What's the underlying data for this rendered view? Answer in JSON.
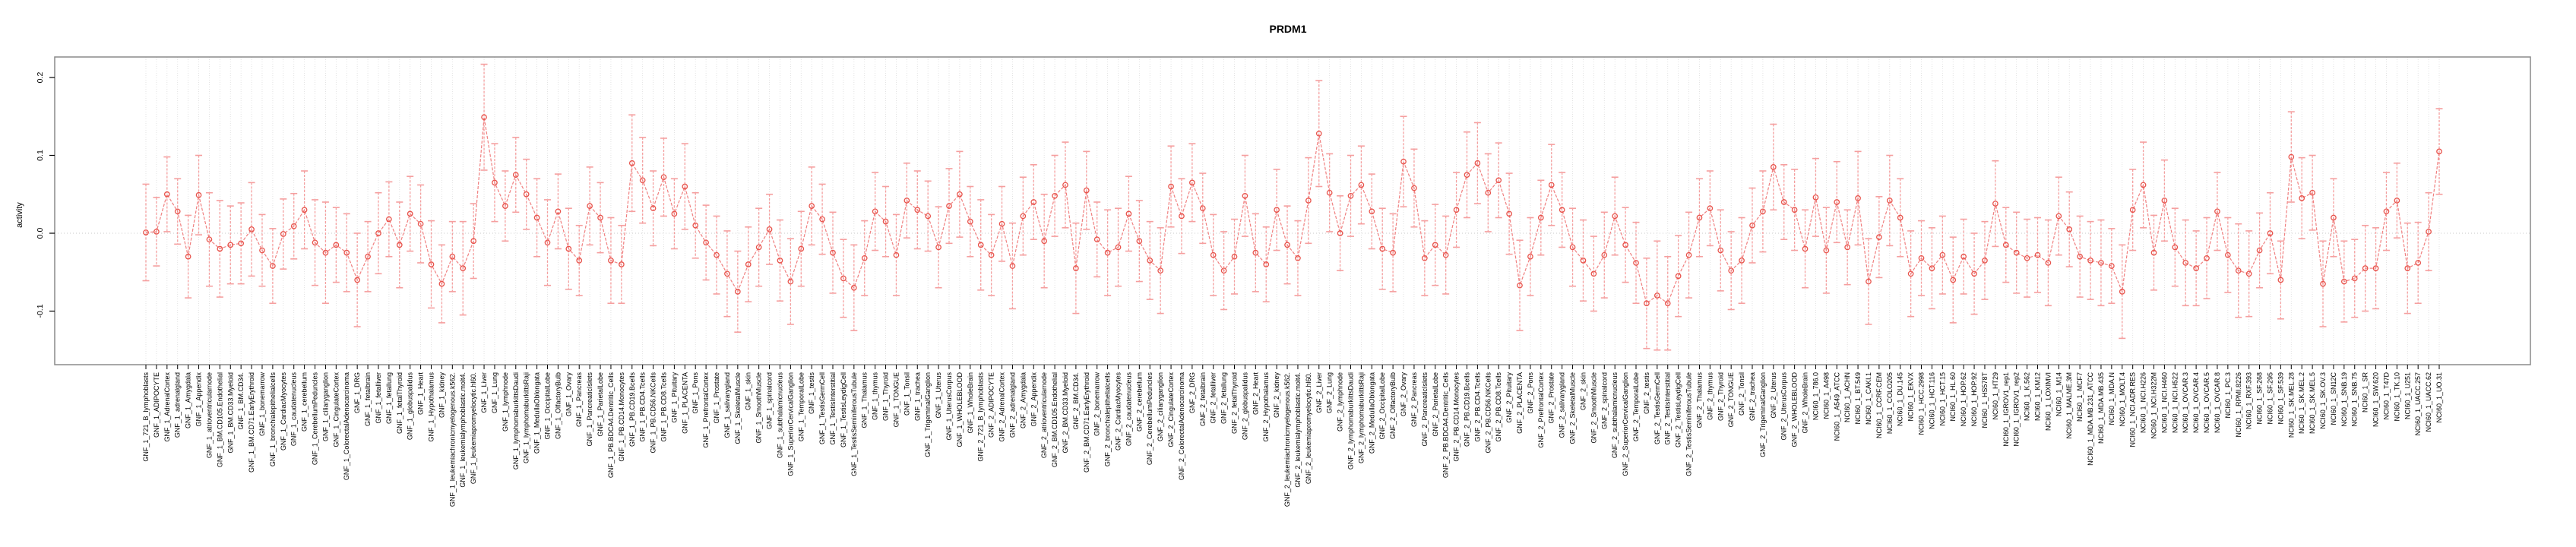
{
  "title": "PRDM1",
  "chart_data": {
    "type": "line",
    "title": "PRDM1",
    "xlabel": "",
    "ylabel": "activity",
    "ylim": [
      -0.169,
      0.226
    ],
    "yticks": [
      -0.1,
      0.0,
      0.1,
      0.2
    ],
    "ytick_labels": [
      "-0.1",
      "0.0",
      "0.1",
      "0.2"
    ],
    "grid": "vertical dotted gridline at every category, dotted horizontal line at 0",
    "legend": "none",
    "marker": "open-circle",
    "error_bars": true,
    "colors": {
      "error_bar": "#f59f9f",
      "series_line": "#f08080",
      "point_stroke": "#e8544c",
      "gridline": "#dcdcdc",
      "zero_line": "#c8c8c8",
      "plot_border": "#8a8a8a",
      "text": "#000000"
    },
    "categories": [
      "GNF_1_721_B_lymphoblasts",
      "GNF_1_ADIPOCYTE",
      "GNF_1_AdrenalCortex",
      "GNF_1_adrenalgland",
      "GNF_1_Amygdala",
      "GNF_1_Appendix",
      "GNF_1_atrioventricularnode",
      "GNF_1_BM.CD105.Endothelial",
      "GNF_1_BM.CD33.Myeloid",
      "GNF_1_BM.CD34.",
      "GNF_1_BM.CD71.EarlyErythroid",
      "GNF_1_bonemarrow",
      "GNF_1_bronchialepithelialcells",
      "GNF_1_CardiacMyocytes",
      "GNF_1_caudatenucleus",
      "GNF_1_cerebellum",
      "GNF_1_CerebellumPeduncles",
      "GNF_1_ciliaryganglion",
      "GNF_1_CingulateCortex",
      "GNF_1_ColorectalAdenocarcinoma",
      "GNF_1_DRG",
      "GNF_1_fetalbrain",
      "GNF_1_fetalliver",
      "GNF_1_fetallung",
      "GNF_1_fetalThyroid",
      "GNF_1_globuspalidus",
      "GNF_1_Heart",
      "GNF_1_Hypothalamus",
      "GNF_1_kidney",
      "GNF_1_leukemiachronicmyelogenous.k562.",
      "GNF_1_leukemialymphoblastic.molt4.",
      "GNF_1_leukemiapromyelocytic.hl60.",
      "GNF_1_Liver",
      "GNF_1_Lung",
      "GNF_1_lymphnode",
      "GNF_1_lymphomaburkittsDaudi",
      "GNF_1_lymphomaburkittsRaji",
      "GNF_1_MedullaOblongata",
      "GNF_1_OccipitalLobe",
      "GNF_1_OlfactoryBulb",
      "GNF_1_Ovary",
      "GNF_1_Pancreas",
      "GNF_1_PancreaticIslets",
      "GNF_1_ParietalLobe",
      "GNF_1_PB.BDCA4.Dentritic_Cells",
      "GNF_1_PB.CD14.Monocytes",
      "GNF_1_PB.CD19.Bcells",
      "GNF_1_PB.CD4.Tcells",
      "GNF_1_PB.CD56.NKCells",
      "GNF_1_PB.CD8.Tcells",
      "GNF_1_Pituitary",
      "GNF_1_PLACENTA",
      "GNF_1_Pons",
      "GNF_1_PrefrontalCortex",
      "GNF_1_Prostate",
      "GNF_1_salivarygland",
      "GNF_1_SkeletalMuscle",
      "GNF_1_skin",
      "GNF_1_SmoothMuscle",
      "GNF_1_spinalcord",
      "GNF_1_subthalamicnucleus",
      "GNF_1_SuperiorCervicalGanglion",
      "GNF_1_TemporalLobe",
      "GNF_1_testis",
      "GNF_1_TestisGermCell",
      "GNF_1_TestisInterstitial",
      "GNF_1_TestisLeydigCell",
      "GNF_1_TestisSeminiferousTubule",
      "GNF_1_Thalamus",
      "GNF_1_thymus",
      "GNF_1_Thyroid",
      "GNF_1_TONGUE",
      "GNF_1_Tonsil",
      "GNF_1_trachea",
      "GNF_1_TrigeminalGanglion",
      "GNF_1_Uterus",
      "GNF_1_UterusCorpus",
      "GNF_1_WHOLEBLOOD",
      "GNF_1_WholeBrain",
      "GNF_2_721_B_lymphoblasts",
      "GNF_2_ADIPOCYTE",
      "GNF_2_AdrenalCortex",
      "GNF_2_adrenalgland",
      "GNF_2_Amygdala",
      "GNF_2_Appendix",
      "GNF_2_atrioventricularnode",
      "GNF_2_BM.CD105.Endothelial",
      "GNF_2_BM.CD33.Myeloid",
      "GNF_2_BM.CD34.",
      "GNF_2_BM.CD71.EarlyErythroid",
      "GNF_2_bonemarrow",
      "GNF_2_bronchialepithelialcells",
      "GNF_2_CardiacMyocytes",
      "GNF_2_caudatenucleus",
      "GNF_2_cerebellum",
      "GNF_2_CerebellumPeduncles",
      "GNF_2_ciliaryganglion",
      "GNF_2_CingulateCortex",
      "GNF_2_ColorectalAdenocarcinoma",
      "GNF_2_DRG",
      "GNF_2_fetalbrain",
      "GNF_2_fetalliver",
      "GNF_2_fetallung",
      "GNF_2_fetalThyroid",
      "GNF_2_globuspalidus",
      "GNF_2_Heart",
      "GNF_2_Hypothalamus",
      "GNF_2_kidney",
      "GNF_2_leukemiachronicmyelogenous.k562.",
      "GNF_2_leukemialymphoblastic.molt4.",
      "GNF_2_leukemiapromyelocytic.hl60.",
      "GNF_2_Liver",
      "GNF_2_Lung",
      "GNF_2_lymphnode",
      "GNF_2_lymphomaburkittsDaudi",
      "GNF_2_lymphomaburkittsRaji",
      "GNF_2_MedullaOblongata",
      "GNF_2_OccipitalLobe",
      "GNF_2_OlfactoryBulb",
      "GNF_2_Ovary",
      "GNF_2_Pancreas",
      "GNF_2_PancreaticIslets",
      "GNF_2_ParietalLobe",
      "GNF_2_PB.BDCA4.Dentritic_Cells",
      "GNF_2_PB.CD14.Monocytes",
      "GNF_2_PB.CD19.Bcells",
      "GNF_2_PB.CD4.Tcells",
      "GNF_2_PB.CD56.NKCells",
      "GNF_2_PB.CD8.Tcells",
      "GNF_2_Pituitary",
      "GNF_2_PLACENTA",
      "GNF_2_Pons",
      "GNF_2_PrefrontalCortex",
      "GNF_2_Prostate",
      "GNF_2_salivarygland",
      "GNF_2_SkeletalMuscle",
      "GNF_2_skin",
      "GNF_2_SmoothMuscle",
      "GNF_2_spinalcord",
      "GNF_2_subthalamicnucleus",
      "GNF_2_SuperiorCervicalGanglion",
      "GNF_2_TemporalLobe",
      "GNF_2_testis",
      "GNF_2_TestisGermCell",
      "GNF_2_TestisInterstitial",
      "GNF_2_TestisLeydigCell",
      "GNF_2_TestisSeminiferousTubule",
      "GNF_2_Thalamus",
      "GNF_2_thymus",
      "GNF_2_Thyroid",
      "GNF_2_TONGUE",
      "GNF_2_Tonsil",
      "GNF_2_trachea",
      "GNF_2_TrigeminalGanglion",
      "GNF_2_Uterus",
      "GNF_2_UterusCorpus",
      "GNF_2_WHOLEBLOOD",
      "GNF_2_WholeBrain",
      "NCI60_1_786.0",
      "NCI60_1_A498",
      "NCI60_1_A549_ATCC",
      "NCI60_1_ACHN",
      "NCI60_1_BT.549",
      "NCI60_1_CAKI.1",
      "NCI60_1_CCRF.CEM",
      "NCI60_1_COLO205",
      "NCI60_1_DU.145",
      "NCI60_1_EKVX",
      "NCI60_1_HCC.2998",
      "NCI60_1_HCT.116",
      "NCI60_1_HCT.15",
      "NCI60_1_HL.60",
      "NCI60_1_HOP.62",
      "NCI60_1_HOP.92",
      "NCI60_1_HS578T",
      "NCI60_1_HT29",
      "NCI60_1_IGROV1_rep1",
      "NCI60_1_IGROV1_rep2",
      "NCI60_1_K.562",
      "NCI60_1_KM12",
      "NCI60_1_LOXIMVI",
      "NCI60_1_M14",
      "NCI60_1_MALME.3M",
      "NCI60_1_MCF7",
      "NCI60_1_MDA.MB.231_ATCC",
      "NCI60_1_MDA.MB.435",
      "NCI60_1_MDA.N",
      "NCI60_1_MOLT.4",
      "NCI60_1_NCI.ADR.RES",
      "NCI60_1_NCI.H226",
      "NCI60_1_NCI.H322M",
      "NCI60_1_NCI.H460",
      "NCI60_1_NCI.H522",
      "NCI60_1_OVCAR.3",
      "NCI60_1_OVCAR.4",
      "NCI60_1_OVCAR.5",
      "NCI60_1_OVCAR.8",
      "NCI60_1_PC.3",
      "NCI60_1_RPMI.8226",
      "NCI60_1_RXF.393",
      "NCI60_1_SF.268",
      "NCI60_1_SF.295",
      "NCI60_1_SF.539",
      "NCI60_1_SK.MEL.28",
      "NCI60_1_SK.MEL.2",
      "NCI60_1_SK.MEL.5",
      "NCI60_1_SK.OV.3",
      "NCI60_1_SN12C",
      "NCI60_1_SNB.19",
      "NCI60_1_SNB.75",
      "NCI60_1_SR",
      "NCI60_1_SW.620",
      "NCI60_1_T47D",
      "NCI60_1_TK.10",
      "NCI60_1_U251",
      "NCI60_1_UACC.257",
      "NCI60_1_UACC.62",
      "NCI60_1_UO.31"
    ],
    "values": [
      0.001,
      0.002,
      0.05,
      0.028,
      -0.03,
      0.049,
      -0.008,
      -0.02,
      -0.015,
      -0.013,
      0.005,
      -0.022,
      -0.042,
      -0.001,
      0.009,
      0.03,
      -0.012,
      -0.025,
      -0.015,
      -0.025,
      -0.06,
      -0.03,
      0.0,
      0.018,
      -0.015,
      0.025,
      0.012,
      -0.04,
      -0.065,
      -0.03,
      -0.045,
      -0.01,
      0.149,
      0.065,
      0.035,
      0.075,
      0.05,
      0.02,
      -0.012,
      0.028,
      -0.02,
      -0.035,
      0.035,
      0.02,
      -0.035,
      -0.04,
      0.09,
      0.068,
      0.032,
      0.072,
      0.025,
      0.06,
      0.01,
      -0.012,
      -0.028,
      -0.052,
      -0.075,
      -0.04,
      -0.018,
      0.005,
      -0.035,
      -0.062,
      -0.02,
      0.035,
      0.018,
      -0.025,
      -0.058,
      -0.07,
      -0.032,
      0.028,
      0.015,
      -0.028,
      0.042,
      0.03,
      0.022,
      -0.018,
      0.035,
      0.05,
      0.015,
      -0.015,
      -0.028,
      0.012,
      -0.042,
      0.022,
      0.04,
      -0.01,
      0.048,
      0.062,
      -0.045,
      0.055,
      -0.008,
      -0.025,
      -0.018,
      0.025,
      -0.01,
      -0.035,
      -0.048,
      0.06,
      0.022,
      0.065,
      0.032,
      -0.028,
      -0.048,
      -0.03,
      0.048,
      -0.025,
      -0.04,
      0.03,
      -0.015,
      -0.032,
      0.042,
      0.128,
      0.052,
      0.0,
      0.048,
      0.062,
      0.028,
      -0.02,
      -0.025,
      0.092,
      0.058,
      -0.032,
      -0.015,
      -0.028,
      0.03,
      0.075,
      0.09,
      0.052,
      0.068,
      0.025,
      -0.067,
      -0.03,
      0.02,
      0.062,
      0.03,
      -0.018,
      -0.035,
      -0.052,
      -0.028,
      0.022,
      -0.015,
      -0.038,
      -0.09,
      -0.08,
      -0.09,
      -0.055,
      -0.028,
      0.02,
      0.032,
      -0.022,
      -0.048,
      -0.035,
      0.01,
      0.028,
      0.085,
      0.04,
      0.03,
      -0.02,
      0.046,
      -0.022,
      0.04,
      -0.018,
      0.045,
      -0.062,
      -0.005,
      0.042,
      0.02,
      -0.052,
      -0.032,
      -0.045,
      -0.028,
      -0.06,
      -0.03,
      -0.052,
      -0.035,
      0.038,
      -0.015,
      -0.025,
      -0.032,
      -0.028,
      -0.038,
      0.022,
      0.005,
      -0.03,
      -0.035,
      -0.038,
      -0.042,
      -0.075,
      0.03,
      0.062,
      -0.025,
      0.042,
      -0.018,
      -0.038,
      -0.045,
      -0.032,
      0.028,
      -0.028,
      -0.048,
      -0.052,
      -0.022,
      0.0,
      -0.06,
      0.098,
      0.045,
      0.052,
      -0.065,
      0.02,
      -0.062,
      -0.058,
      -0.045,
      -0.045,
      0.028,
      0.042,
      -0.045,
      -0.038,
      0.002,
      0.105
    ],
    "errors": [
      0.062,
      0.044,
      0.048,
      0.042,
      0.053,
      0.051,
      0.06,
      0.062,
      0.05,
      0.052,
      0.06,
      0.046,
      0.048,
      0.045,
      0.042,
      0.05,
      0.055,
      0.065,
      0.048,
      0.05,
      0.06,
      0.045,
      0.052,
      0.048,
      0.055,
      0.048,
      0.05,
      0.056,
      0.05,
      0.045,
      0.06,
      0.048,
      0.068,
      0.05,
      0.045,
      0.048,
      0.045,
      0.05,
      0.055,
      0.048,
      0.052,
      0.045,
      0.05,
      0.045,
      0.055,
      0.05,
      0.062,
      0.055,
      0.048,
      0.05,
      0.045,
      0.055,
      0.042,
      0.048,
      0.05,
      0.055,
      0.052,
      0.048,
      0.05,
      0.045,
      0.052,
      0.055,
      0.048,
      0.05,
      0.045,
      0.052,
      0.05,
      0.055,
      0.048,
      0.05,
      0.045,
      0.052,
      0.048,
      0.05,
      0.045,
      0.052,
      0.048,
      0.055,
      0.045,
      0.058,
      0.052,
      0.048,
      0.055,
      0.05,
      0.048,
      0.06,
      0.052,
      0.055,
      0.058,
      0.05,
      0.048,
      0.055,
      0.05,
      0.048,
      0.052,
      0.05,
      0.055,
      0.052,
      0.048,
      0.05,
      0.045,
      0.052,
      0.05,
      0.048,
      0.052,
      0.05,
      0.048,
      0.052,
      0.05,
      0.048,
      0.055,
      0.068,
      0.05,
      0.048,
      0.052,
      0.05,
      0.048,
      0.052,
      0.05,
      0.058,
      0.05,
      0.048,
      0.052,
      0.05,
      0.048,
      0.055,
      0.052,
      0.05,
      0.048,
      0.052,
      0.058,
      0.05,
      0.048,
      0.052,
      0.048,
      0.05,
      0.052,
      0.048,
      0.055,
      0.05,
      0.048,
      0.052,
      0.058,
      0.07,
      0.06,
      0.052,
      0.055,
      0.05,
      0.048,
      0.052,
      0.05,
      0.055,
      0.048,
      0.052,
      0.055,
      0.048,
      0.052,
      0.05,
      0.05,
      0.055,
      0.052,
      0.048,
      0.06,
      0.055,
      0.052,
      0.058,
      0.05,
      0.055,
      0.048,
      0.052,
      0.05,
      0.055,
      0.048,
      0.052,
      0.05,
      0.055,
      0.048,
      0.052,
      0.05,
      0.048,
      0.055,
      0.05,
      0.048,
      0.052,
      0.05,
      0.055,
      0.048,
      0.06,
      0.052,
      0.055,
      0.048,
      0.052,
      0.05,
      0.055,
      0.048,
      0.052,
      0.05,
      0.048,
      0.06,
      0.055,
      0.048,
      0.052,
      0.05,
      0.058,
      0.052,
      0.048,
      0.055,
      0.05,
      0.052,
      0.05,
      0.055,
      0.052,
      0.05,
      0.048,
      0.058,
      0.052,
      0.05,
      0.055
    ]
  }
}
